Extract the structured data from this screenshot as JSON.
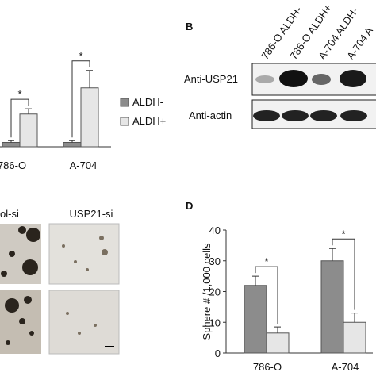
{
  "chart_data": [
    {
      "type": "bar",
      "categories": [
        "786-O",
        "A-704"
      ],
      "series": [
        {
          "name": "ALDH-",
          "color": "#8c8c8c",
          "values": [
            1,
            1
          ],
          "errors": [
            0.4,
            0.4
          ]
        },
        {
          "name": "ALDH+",
          "color": "#e6e6e6",
          "values": [
            7.5,
            13.5
          ],
          "errors": [
            1.2,
            4
          ]
        }
      ],
      "annotations": [
        "*",
        "*"
      ]
    },
    {
      "type": "bar",
      "label": "D",
      "ylabel": "Sphere # /1,000 cells",
      "categories": [
        "786-O",
        "A-704"
      ],
      "series": [
        {
          "color": "#8c8c8c",
          "values": [
            22,
            30
          ],
          "errors": [
            3,
            4
          ]
        },
        {
          "color": "#e6e6e6",
          "values": [
            6.5,
            10
          ],
          "errors": [
            2,
            3
          ]
        }
      ],
      "ylim": [
        0,
        40
      ],
      "yticks": [
        0,
        10,
        20,
        30,
        40
      ],
      "annotations": [
        "*",
        "*"
      ]
    }
  ],
  "blot": {
    "label": "B",
    "columns": [
      "786-O ALDH-",
      "786-O ALDH+",
      "A-704 ALDH-",
      "A-704 A"
    ],
    "rows": [
      "Anti-USP21",
      "Anti-actin"
    ]
  },
  "images": {
    "columns": [
      "ol-si",
      "USP21-si"
    ]
  }
}
